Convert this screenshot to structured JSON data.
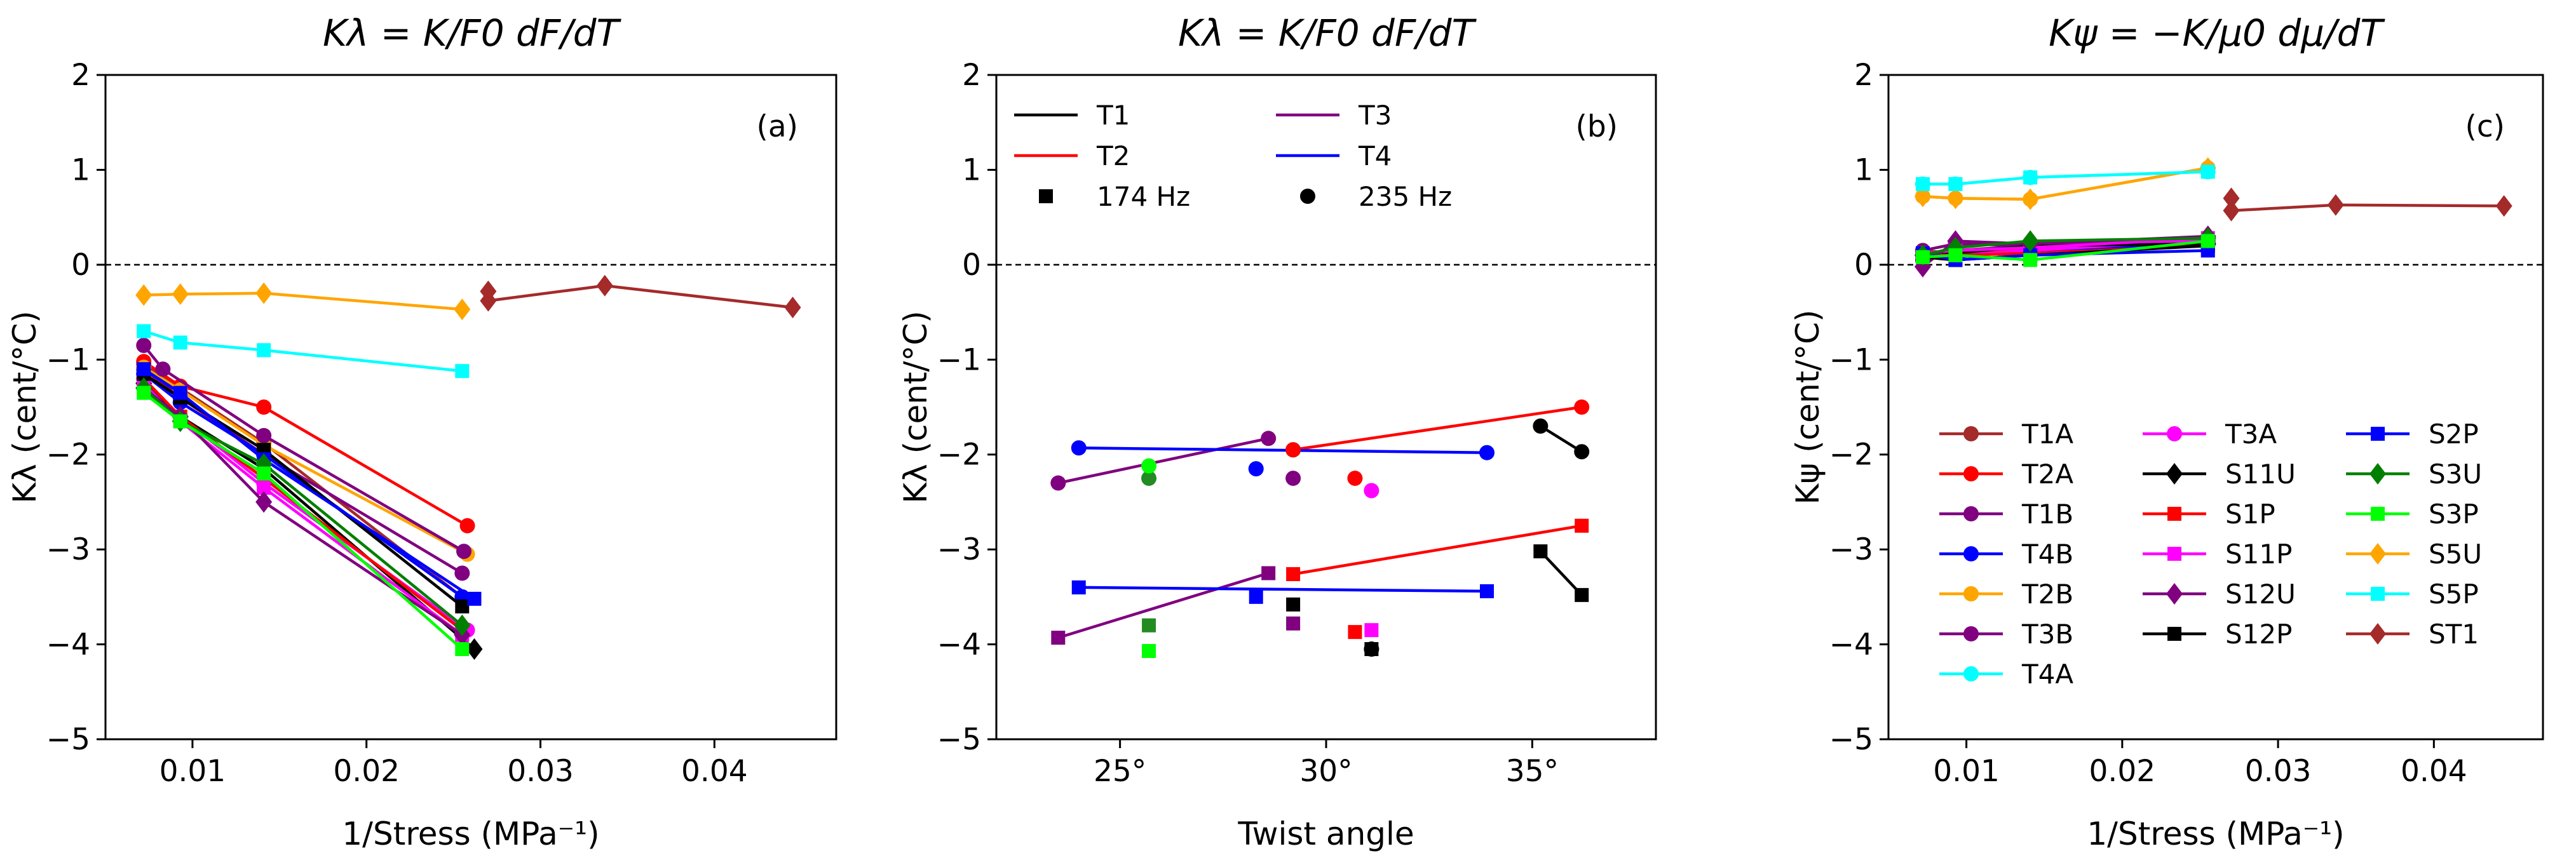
{
  "colors": {
    "T1A": "#a52a2a",
    "T2A": "#ff0000",
    "T1B": "#800080",
    "T4B": "#0000ff",
    "T2B": "#ffa500",
    "T3B": "#800080",
    "T4A": "#00ffff",
    "T3A": "#ff00ff",
    "S11U": "#000000",
    "S1P": "#ff0000",
    "S11P": "#ff00ff",
    "S12U": "#800080",
    "S12P": "#000000",
    "S2P": "#0000ff",
    "S3U": "#008000",
    "S3P": "#00ff00",
    "S5U": "#ffa500",
    "S5P": "#00ffff",
    "ST1": "#a52a2a",
    "T1": "#000000",
    "T2": "#ff0000",
    "T3": "#800080",
    "T4": "#0000ff",
    "S3U_twist": "#228b22"
  },
  "markers": {
    "T1A": "circle",
    "T2A": "circle",
    "T1B": "circle",
    "T4B": "circle",
    "T2B": "circle",
    "T3B": "circle",
    "T4A": "circle",
    "T3A": "circle",
    "S11U": "diamond",
    "S1P": "square",
    "S11P": "square",
    "S12U": "diamond",
    "S12P": "square",
    "S2P": "square",
    "S3U": "diamond",
    "S3P": "square",
    "S5U": "diamond",
    "S5P": "square",
    "ST1": "diamond"
  },
  "chart_data": [
    {
      "type": "line",
      "panel_label": "(a)",
      "title": "Kλ = K/F0 dF/dT",
      "xlabel": "1/Stress (MPa⁻¹)",
      "ylabel": "Kλ (cent/°C)",
      "xlim": [
        0.005,
        0.047
      ],
      "ylim": [
        -5,
        2
      ],
      "xticks": [
        0.01,
        0.02,
        0.03,
        0.04
      ],
      "xtick_labels": [
        "0.01",
        "0.02",
        "0.03",
        "0.04"
      ],
      "yticks": [
        -5,
        -4,
        -3,
        -2,
        -1,
        0,
        1,
        2
      ],
      "ytick_labels": [
        "−5",
        "−4",
        "−3",
        "−2",
        "−1",
        "0",
        "1",
        "2"
      ],
      "reference_line": 0,
      "series": [
        {
          "name": "T1A",
          "x": [
            0.0072,
            0.0093,
            0.0141,
            0.0255
          ],
          "y": [
            -1.05,
            -1.3,
            -1.88,
            -3.5
          ]
        },
        {
          "name": "T2A",
          "x": [
            0.0072,
            0.0093,
            0.0141,
            0.0258
          ],
          "y": [
            -1.02,
            -1.28,
            -1.5,
            -2.75
          ]
        },
        {
          "name": "T1B",
          "x": [
            0.0072,
            0.0093,
            0.0141,
            0.0255
          ],
          "y": [
            -1.1,
            -1.4,
            -2.0,
            -3.25
          ]
        },
        {
          "name": "T4B",
          "x": [
            0.0072,
            0.0093,
            0.0141,
            0.0255
          ],
          "y": [
            -1.15,
            -1.45,
            -2.0,
            -3.5
          ]
        },
        {
          "name": "T2B",
          "x": [
            0.0072,
            0.0093,
            0.0141,
            0.0258
          ],
          "y": [
            -1.08,
            -1.32,
            -1.9,
            -3.05
          ]
        },
        {
          "name": "T3B",
          "x": [
            0.0072,
            0.0083,
            0.0141,
            0.0256
          ],
          "y": [
            -0.85,
            -1.1,
            -1.8,
            -3.02
          ]
        },
        {
          "name": "T3A",
          "x": [
            0.0072,
            0.0093,
            0.0141,
            0.0258
          ],
          "y": [
            -1.2,
            -1.6,
            -2.3,
            -3.85
          ]
        },
        {
          "name": "S11U",
          "x": [
            0.0072,
            0.0093,
            0.0141,
            0.0262
          ],
          "y": [
            -1.25,
            -1.6,
            -2.15,
            -4.05
          ]
        },
        {
          "name": "S1P",
          "x": [
            0.0072,
            0.0093,
            0.0141,
            0.0255
          ],
          "y": [
            -1.2,
            -1.6,
            -2.25,
            -3.85
          ]
        },
        {
          "name": "S11P",
          "x": [
            0.0072,
            0.0093,
            0.0141,
            0.0255
          ],
          "y": [
            -1.25,
            -1.65,
            -2.35,
            -3.9
          ]
        },
        {
          "name": "S12U",
          "x": [
            0.0072,
            0.0093,
            0.0141,
            0.0255
          ],
          "y": [
            -1.3,
            -1.6,
            -2.5,
            -3.9
          ]
        },
        {
          "name": "S12P",
          "x": [
            0.0072,
            0.0093,
            0.0141,
            0.0255
          ],
          "y": [
            -1.15,
            -1.4,
            -1.95,
            -3.6
          ]
        },
        {
          "name": "S2P",
          "x": [
            0.0072,
            0.0093,
            0.0141,
            0.0262
          ],
          "y": [
            -1.1,
            -1.35,
            -2.05,
            -3.52
          ]
        },
        {
          "name": "S3U",
          "x": [
            0.0072,
            0.0093,
            0.0141,
            0.0255
          ],
          "y": [
            -1.3,
            -1.65,
            -2.1,
            -3.8
          ]
        },
        {
          "name": "S3P",
          "x": [
            0.0072,
            0.0093,
            0.0141,
            0.0255
          ],
          "y": [
            -1.35,
            -1.65,
            -2.2,
            -4.05
          ]
        },
        {
          "name": "S5U",
          "x": [
            0.0072,
            0.0093,
            0.0141,
            0.0255
          ],
          "y": [
            -0.32,
            -0.31,
            -0.3,
            -0.47
          ]
        },
        {
          "name": "S5P",
          "x": [
            0.0072,
            0.0093,
            0.0141,
            0.0255
          ],
          "y": [
            -0.7,
            -0.82,
            -0.9,
            -1.12
          ]
        },
        {
          "name": "ST1",
          "x": [
            0.027,
            0.027,
            0.0337,
            0.0445
          ],
          "y": [
            -0.28,
            -0.38,
            -0.22,
            -0.45
          ]
        }
      ]
    },
    {
      "type": "scatter",
      "panel_label": "(b)",
      "title": "Kλ = K/F0 dF/dT",
      "xlabel": "Twist angle",
      "ylabel": "Kλ (cent/°C)",
      "xlim": [
        22,
        38
      ],
      "ylim": [
        -5,
        2
      ],
      "xticks": [
        25,
        30,
        35
      ],
      "xtick_labels": [
        "25°",
        "30°",
        "35°"
      ],
      "yticks": [
        -5,
        -4,
        -3,
        -2,
        -1,
        0,
        1,
        2
      ],
      "ytick_labels": [
        "−5",
        "−4",
        "−3",
        "−2",
        "−1",
        "0",
        "1",
        "2"
      ],
      "reference_line": 0,
      "legend": {
        "location": "top-left",
        "entries": [
          {
            "label": "T1",
            "kind": "line",
            "color_key": "T1"
          },
          {
            "label": "T3",
            "kind": "line",
            "color_key": "T3"
          },
          {
            "label": "T2",
            "kind": "line",
            "color_key": "T2"
          },
          {
            "label": "T4",
            "kind": "line",
            "color_key": "T4"
          },
          {
            "label": "174 Hz",
            "kind": "square"
          },
          {
            "label": "235 Hz",
            "kind": "circle"
          }
        ]
      },
      "lines": [
        {
          "name": "T1",
          "x": [
            35.2,
            36.2
          ],
          "y": [
            -1.7,
            -1.97
          ]
        },
        {
          "name": "T1",
          "x": [
            35.2,
            36.2
          ],
          "y": [
            -3.02,
            -3.48
          ]
        },
        {
          "name": "T2",
          "x": [
            29.2,
            36.2
          ],
          "y": [
            -1.95,
            -1.5
          ]
        },
        {
          "name": "T2",
          "x": [
            29.2,
            36.2
          ],
          "y": [
            -3.26,
            -2.75
          ]
        },
        {
          "name": "T3",
          "x": [
            23.5,
            28.6
          ],
          "y": [
            -2.3,
            -1.83
          ]
        },
        {
          "name": "T3",
          "x": [
            23.5,
            28.6
          ],
          "y": [
            -3.93,
            -3.25
          ]
        },
        {
          "name": "T4",
          "x": [
            24.0,
            33.9
          ],
          "y": [
            -1.93,
            -1.98
          ]
        },
        {
          "name": "T4",
          "x": [
            24.0,
            33.9
          ],
          "y": [
            -3.4,
            -3.44
          ]
        }
      ],
      "points": [
        {
          "name": "T1",
          "marker": "circle",
          "x": [
            35.2,
            36.2,
            29.2,
            31.1
          ],
          "y": [
            -1.7,
            -1.97,
            -1.95,
            -4.05
          ]
        },
        {
          "name": "T1",
          "marker": "square",
          "x": [
            35.2,
            36.2,
            29.2,
            31.1
          ],
          "y": [
            -3.02,
            -3.48,
            -3.58,
            -4.05
          ]
        },
        {
          "name": "T2",
          "marker": "circle",
          "x": [
            29.2,
            36.2,
            30.7
          ],
          "y": [
            -1.95,
            -1.5,
            -2.25
          ]
        },
        {
          "name": "T2",
          "marker": "square",
          "x": [
            29.2,
            36.2,
            30.7
          ],
          "y": [
            -3.26,
            -2.75,
            -3.87
          ]
        },
        {
          "name": "T3",
          "marker": "circle",
          "x": [
            23.5,
            28.6,
            29.2
          ],
          "y": [
            -2.3,
            -1.83,
            -2.25
          ]
        },
        {
          "name": "T3",
          "marker": "square",
          "x": [
            23.5,
            28.6,
            29.2
          ],
          "y": [
            -3.93,
            -3.25,
            -3.78
          ]
        },
        {
          "name": "T4",
          "marker": "circle",
          "x": [
            24.0,
            33.9,
            28.3
          ],
          "y": [
            -1.93,
            -1.98,
            -2.15
          ]
        },
        {
          "name": "T4",
          "marker": "square",
          "x": [
            24.0,
            33.9,
            28.3
          ],
          "y": [
            -3.4,
            -3.44,
            -3.5
          ]
        },
        {
          "name": "S3U_twist",
          "marker": "circle",
          "x": [
            25.7
          ],
          "y": [
            -2.25
          ]
        },
        {
          "name": "S3U_twist",
          "marker": "square",
          "x": [
            25.7
          ],
          "y": [
            -3.8
          ]
        },
        {
          "name": "S3P",
          "marker": "circle",
          "x": [
            25.7
          ],
          "y": [
            -2.12
          ]
        },
        {
          "name": "S3P",
          "marker": "square",
          "x": [
            25.7
          ],
          "y": [
            -4.07
          ]
        },
        {
          "name": "T3A",
          "marker": "circle",
          "x": [
            31.1
          ],
          "y": [
            -2.38
          ]
        },
        {
          "name": "T3A",
          "marker": "square",
          "x": [
            31.1
          ],
          "y": [
            -3.85
          ]
        }
      ]
    },
    {
      "type": "line",
      "panel_label": "(c)",
      "title": "Kψ = −K/μ0 dμ/dT",
      "xlabel": "1/Stress (MPa⁻¹)",
      "ylabel": "Kψ (cent/°C)",
      "xlim": [
        0.005,
        0.047
      ],
      "ylim": [
        -5,
        2
      ],
      "xticks": [
        0.01,
        0.02,
        0.03,
        0.04
      ],
      "xtick_labels": [
        "0.01",
        "0.02",
        "0.03",
        "0.04"
      ],
      "yticks": [
        -5,
        -4,
        -3,
        -2,
        -1,
        0,
        1,
        2
      ],
      "ytick_labels": [
        "−5",
        "−4",
        "−3",
        "−2",
        "−1",
        "0",
        "1",
        "2"
      ],
      "reference_line": 0,
      "legend": {
        "location": "lower-right",
        "columns": [
          [
            "T1A",
            "T2A",
            "T1B",
            "T4B",
            "T2B",
            "T3B",
            "T4A"
          ],
          [
            "T3A",
            "S11U",
            "S1P",
            "S11P",
            "S12U",
            "S12P"
          ],
          [
            "S2P",
            "S3U",
            "S3P",
            "S5U",
            "S5P",
            "ST1"
          ]
        ]
      },
      "series": [
        {
          "name": "T1A",
          "x": [
            0.0072,
            0.0093,
            0.0141,
            0.0255
          ],
          "y": [
            0.15,
            0.12,
            0.18,
            0.25
          ]
        },
        {
          "name": "T2A",
          "x": [
            0.0072,
            0.0093,
            0.0141,
            0.0255
          ],
          "y": [
            0.1,
            0.12,
            0.15,
            0.25
          ]
        },
        {
          "name": "T1B",
          "x": [
            0.0072,
            0.0093,
            0.0141,
            0.0255
          ],
          "y": [
            0.05,
            0.15,
            0.2,
            0.27
          ]
        },
        {
          "name": "T4B",
          "x": [
            0.0072,
            0.0093,
            0.0141,
            0.0255
          ],
          "y": [
            0.1,
            0.08,
            0.15,
            0.22
          ]
        },
        {
          "name": "T2B",
          "x": [
            0.0072,
            0.0093,
            0.0141,
            0.0255
          ],
          "y": [
            0.72,
            0.7,
            0.69,
            1.02
          ]
        },
        {
          "name": "T3B",
          "x": [
            0.0072,
            0.0093,
            0.0141,
            0.0255
          ],
          "y": [
            0.15,
            0.22,
            0.2,
            0.28
          ]
        },
        {
          "name": "T4A",
          "x": [
            0.0072,
            0.0093,
            0.0141,
            0.0255
          ],
          "y": [
            0.85,
            0.85,
            0.92,
            0.98
          ]
        },
        {
          "name": "T3A",
          "x": [
            0.0072,
            0.0093,
            0.0141,
            0.0255
          ],
          "y": [
            0.12,
            0.1,
            0.15,
            0.26
          ]
        },
        {
          "name": "S11U",
          "x": [
            0.0072,
            0.0093,
            0.0141,
            0.0255
          ],
          "y": [
            0.1,
            0.12,
            0.2,
            0.22
          ]
        },
        {
          "name": "S1P",
          "x": [
            0.0072,
            0.0093,
            0.0141,
            0.0255
          ],
          "y": [
            0.1,
            0.1,
            0.12,
            0.2
          ]
        },
        {
          "name": "S11P",
          "x": [
            0.0072,
            0.0093,
            0.0141,
            0.0255
          ],
          "y": [
            0.12,
            0.15,
            0.18,
            0.28
          ]
        },
        {
          "name": "S12U",
          "x": [
            0.0072,
            0.0093,
            0.0141,
            0.0255
          ],
          "y": [
            -0.02,
            0.25,
            0.22,
            0.3
          ]
        },
        {
          "name": "S12P",
          "x": [
            0.0072,
            0.0093,
            0.0141,
            0.0255
          ],
          "y": [
            0.08,
            0.05,
            0.1,
            0.2
          ]
        },
        {
          "name": "S2P",
          "x": [
            0.0072,
            0.0093,
            0.0141,
            0.0255
          ],
          "y": [
            0.12,
            0.05,
            0.1,
            0.15
          ]
        },
        {
          "name": "S3U",
          "x": [
            0.0072,
            0.0093,
            0.0141,
            0.0255
          ],
          "y": [
            0.1,
            0.18,
            0.25,
            0.28
          ]
        },
        {
          "name": "S3P",
          "x": [
            0.0072,
            0.0093,
            0.0141,
            0.0255
          ],
          "y": [
            0.08,
            0.1,
            0.05,
            0.25
          ]
        },
        {
          "name": "S5U",
          "x": [
            0.0072,
            0.0093,
            0.0141,
            0.0255
          ],
          "y": [
            0.72,
            0.7,
            0.69,
            1.02
          ]
        },
        {
          "name": "S5P",
          "x": [
            0.0072,
            0.0093,
            0.0141,
            0.0255
          ],
          "y": [
            0.85,
            0.85,
            0.92,
            0.98
          ]
        },
        {
          "name": "ST1",
          "x": [
            0.027,
            0.027,
            0.0337,
            0.0445
          ],
          "y": [
            0.7,
            0.57,
            0.63,
            0.62
          ]
        }
      ]
    }
  ]
}
